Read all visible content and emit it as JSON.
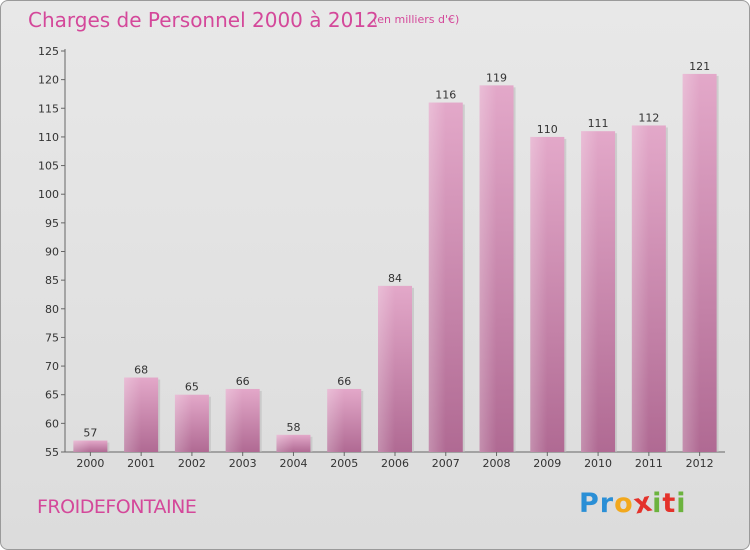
{
  "header": {
    "title": "Charges de Personnel 2000 à 2012",
    "unit": "(en milliers d'€)"
  },
  "footer": {
    "place": "FROIDEFONTAINE",
    "logo_letters": [
      {
        "ch": "P",
        "color": "#2a8fd6"
      },
      {
        "ch": "r",
        "color": "#2a8fd6"
      },
      {
        "ch": "o",
        "color": "#f2a81d"
      },
      {
        "ch": "x",
        "color": "#e4322b"
      },
      {
        "ch": "i",
        "color": "#6cb33e"
      },
      {
        "ch": "t",
        "color": "#e4322b"
      },
      {
        "ch": "i",
        "color": "#6cb33e"
      }
    ]
  },
  "chart_data": {
    "type": "bar",
    "title": "Charges de Personnel 2000 à 2012",
    "subtitle": "(en milliers d'€)",
    "xlabel": "",
    "ylabel": "",
    "categories": [
      "2000",
      "2001",
      "2002",
      "2003",
      "2004",
      "2005",
      "2006",
      "2007",
      "2008",
      "2009",
      "2010",
      "2011",
      "2012"
    ],
    "values": [
      57,
      68,
      65,
      66,
      58,
      66,
      84,
      116,
      119,
      110,
      111,
      112,
      121
    ],
    "ylim": [
      55,
      125
    ],
    "yticks": [
      55,
      60,
      65,
      70,
      75,
      80,
      85,
      90,
      95,
      100,
      105,
      110,
      115,
      120,
      125
    ],
    "grid": false,
    "bar_color": "#d98cb8",
    "bar_color_dark": "#b86d98"
  }
}
